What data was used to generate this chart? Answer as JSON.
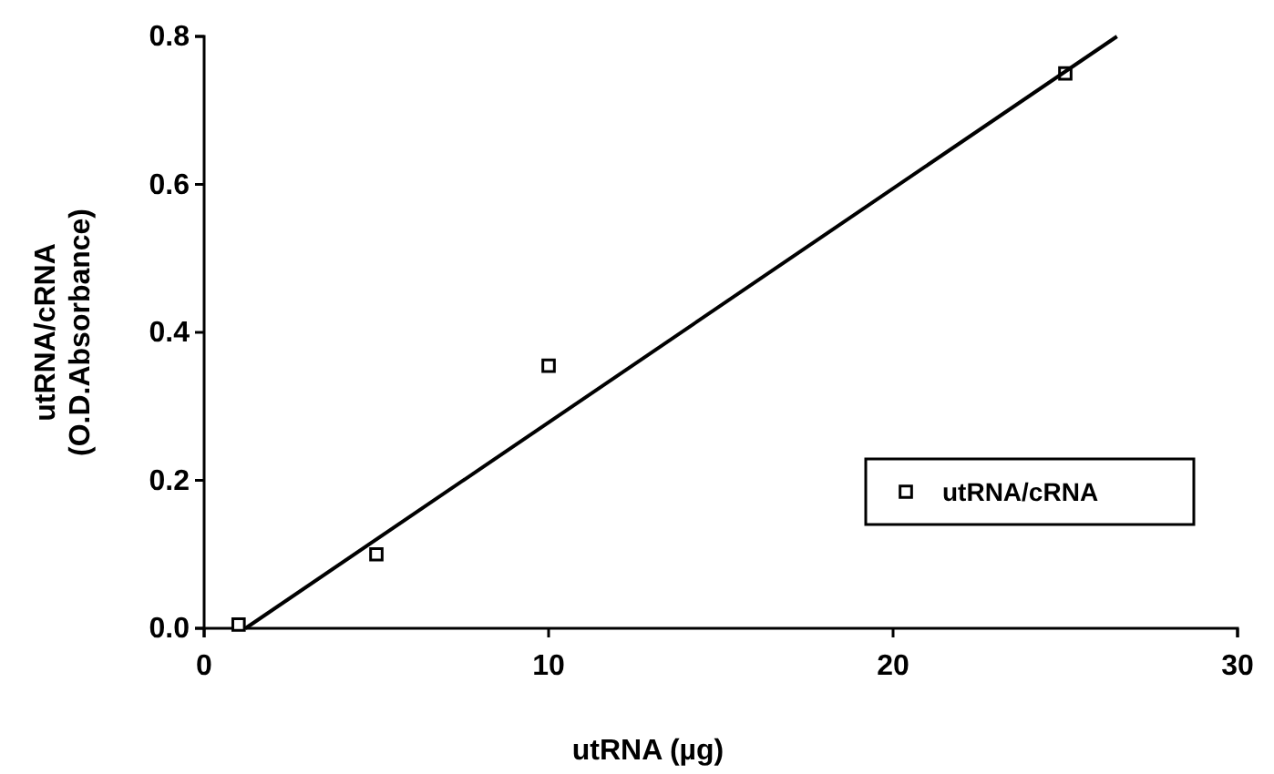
{
  "chart_data": {
    "type": "scatter",
    "xlabel": "utRNA   (µg)",
    "ylabel": "utRNA/cRNA\n(O.D.Absorbance)",
    "xlim": [
      0,
      30
    ],
    "xticks": [
      0,
      10,
      20,
      30
    ],
    "ylim": [
      0,
      0.8
    ],
    "yticks": [
      {
        "value": 0,
        "label": "0.0"
      },
      0.2,
      0.4,
      0.6,
      0.8
    ],
    "grid": false,
    "legend": "right",
    "series": [
      {
        "name": "utRNA/cRNA",
        "marker": "square",
        "color": "#000000",
        "x": [
          1,
          5,
          10,
          25
        ],
        "values": [
          0.005,
          0.1,
          0.355,
          0.75
        ]
      },
      {
        "type": "line",
        "marker": "none",
        "color": "#000000",
        "x": [
          1.2,
          26.5
        ],
        "values": [
          0,
          0.8
        ]
      }
    ]
  }
}
